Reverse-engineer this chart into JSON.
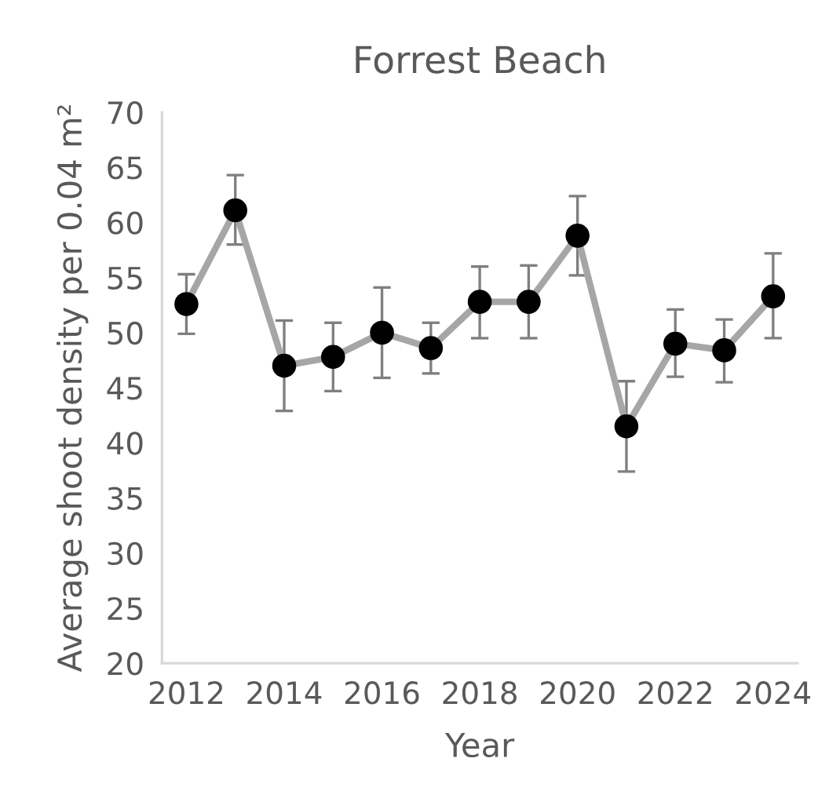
{
  "chart_data": {
    "type": "line",
    "title": "Forrest Beach",
    "xlabel": "Year",
    "ylabel": "Average shoot density per 0.04 m²",
    "x": [
      2012,
      2013,
      2014,
      2015,
      2016,
      2017,
      2018,
      2019,
      2020,
      2021,
      2022,
      2023,
      2024
    ],
    "series": [
      {
        "color": "#a6a6a6",
        "values": [
          52.6,
          61.1,
          47.0,
          47.8,
          50.0,
          48.6,
          52.8,
          52.8,
          58.8,
          41.5,
          49.0,
          48.4,
          53.3
        ],
        "errors": [
          [
            49.9,
            55.3
          ],
          [
            58.0,
            64.3
          ],
          [
            42.9,
            51.1
          ],
          [
            44.7,
            50.9
          ],
          [
            45.9,
            54.1
          ],
          [
            46.3,
            50.9
          ],
          [
            49.5,
            56.0
          ],
          [
            49.5,
            56.1
          ],
          [
            55.2,
            62.4
          ],
          [
            37.4,
            45.6
          ],
          [
            46.0,
            52.1
          ],
          [
            45.5,
            51.2
          ],
          [
            49.5,
            57.2
          ]
        ]
      }
    ],
    "xlim": [
      2011.5,
      2024.5
    ],
    "xticks": [
      2012,
      2014,
      2016,
      2018,
      2020,
      2022,
      2024
    ],
    "ylim": [
      20,
      70
    ],
    "yticks": [
      20,
      25,
      30,
      35,
      40,
      45,
      50,
      55,
      60,
      65,
      70
    ],
    "marker": "circle",
    "line_style": "solid",
    "grid": false,
    "legend": false
  }
}
